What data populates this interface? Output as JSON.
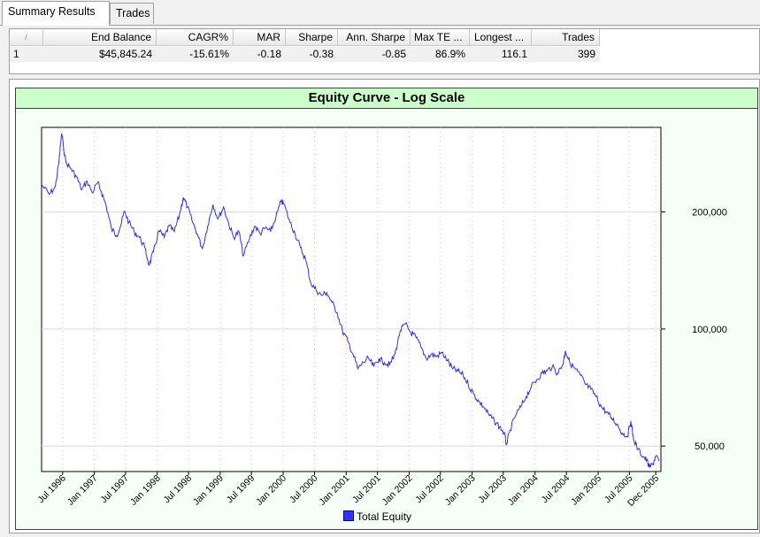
{
  "tabs": [
    {
      "label": "Summary Results",
      "active": true
    },
    {
      "label": "Trades",
      "active": false
    }
  ],
  "results_table": {
    "columns": [
      "/",
      "End Balance",
      "CAGR%",
      "MAR",
      "Sharpe",
      "Ann. Sharpe",
      "Max TE ...",
      "Longest ...",
      "Trades"
    ],
    "rows": [
      [
        "1",
        "$45,845.24",
        "-15.61%",
        "-0.18",
        "-0.38",
        "-0.85",
        "86.9%",
        "116.1",
        "399"
      ]
    ]
  },
  "chart_data": {
    "type": "line",
    "title": "Equity Curve - Log Scale",
    "yscale": "log",
    "ylim": [
      43000,
      330000
    ],
    "y_ticks": [
      {
        "value": 50000,
        "label": "50,000"
      },
      {
        "value": 100000,
        "label": "100,000"
      },
      {
        "value": 200000,
        "label": "200,000"
      }
    ],
    "x_range": [
      "1996-03-01",
      "2005-12-31"
    ],
    "x_tick_labels": [
      "Jul 1996",
      "Jan 1997",
      "Jul 1997",
      "Jan 1998",
      "Jul 1998",
      "Jan 1999",
      "Jul 1999",
      "Jan 2000",
      "Jul 2000",
      "Jan 2001",
      "Jul 2001",
      "Jan 2002",
      "Jul 2002",
      "Jan 2003",
      "Jul 2003",
      "Jan 2004",
      "Jul 2004",
      "Jan 2005",
      "Jul 2005",
      "Dec 2005"
    ],
    "x_tick_dates": [
      "1996-07-01",
      "1997-01-01",
      "1997-07-01",
      "1998-01-01",
      "1998-07-01",
      "1999-01-01",
      "1999-07-01",
      "2000-01-01",
      "2000-07-01",
      "2001-01-01",
      "2001-07-01",
      "2002-01-01",
      "2002-07-01",
      "2003-01-01",
      "2003-07-01",
      "2004-01-01",
      "2004-07-01",
      "2005-01-01",
      "2005-07-01",
      "2005-12-01"
    ],
    "legend": {
      "position": "bottom",
      "entries": [
        "Total Equity"
      ]
    },
    "series": [
      {
        "name": "Total Equity",
        "color": "#3333cc",
        "points": [
          [
            "1996-03-01",
            235000
          ],
          [
            "1996-04-15",
            222000
          ],
          [
            "1996-05-20",
            232000
          ],
          [
            "1996-06-10",
            270000
          ],
          [
            "1996-06-25",
            318000
          ],
          [
            "1996-07-20",
            268000
          ],
          [
            "1996-08-20",
            258000
          ],
          [
            "1996-09-20",
            246000
          ],
          [
            "1996-10-20",
            228000
          ],
          [
            "1996-11-20",
            240000
          ],
          [
            "1996-12-20",
            224000
          ],
          [
            "1997-01-20",
            238000
          ],
          [
            "1997-02-10",
            226000
          ],
          [
            "1997-03-10",
            208000
          ],
          [
            "1997-04-10",
            181000
          ],
          [
            "1997-05-10",
            174000
          ],
          [
            "1997-06-05",
            186000
          ],
          [
            "1997-06-25",
            201000
          ],
          [
            "1997-07-20",
            188000
          ],
          [
            "1997-08-20",
            178000
          ],
          [
            "1997-09-20",
            172000
          ],
          [
            "1997-10-20",
            162000
          ],
          [
            "1997-11-15",
            146000
          ],
          [
            "1997-12-10",
            158000
          ],
          [
            "1998-01-10",
            179000
          ],
          [
            "1998-02-10",
            172000
          ],
          [
            "1998-03-10",
            184000
          ],
          [
            "1998-04-10",
            178000
          ],
          [
            "1998-05-10",
            197000
          ],
          [
            "1998-06-01",
            218000
          ],
          [
            "1998-06-25",
            206000
          ],
          [
            "1998-07-20",
            191000
          ],
          [
            "1998-08-20",
            176000
          ],
          [
            "1998-09-20",
            161000
          ],
          [
            "1998-10-20",
            184000
          ],
          [
            "1998-11-20",
            209000
          ],
          [
            "1998-12-20",
            192000
          ],
          [
            "1999-01-20",
            206000
          ],
          [
            "1999-02-20",
            186000
          ],
          [
            "1999-03-20",
            172000
          ],
          [
            "1999-04-20",
            178000
          ],
          [
            "1999-05-15",
            154000
          ],
          [
            "1999-06-20",
            171000
          ],
          [
            "1999-07-20",
            184000
          ],
          [
            "1999-08-20",
            176000
          ],
          [
            "1999-09-20",
            182000
          ],
          [
            "1999-10-20",
            178000
          ],
          [
            "1999-11-20",
            194000
          ],
          [
            "1999-12-20",
            213000
          ],
          [
            "2000-01-05",
            210000
          ],
          [
            "2000-02-10",
            188000
          ],
          [
            "2000-03-10",
            176000
          ],
          [
            "2000-04-10",
            162000
          ],
          [
            "2000-05-10",
            151000
          ],
          [
            "2000-06-10",
            131000
          ],
          [
            "2000-07-10",
            126000
          ],
          [
            "2000-08-10",
            122000
          ],
          [
            "2000-09-10",
            124000
          ],
          [
            "2000-10-10",
            117000
          ],
          [
            "2000-11-10",
            110000
          ],
          [
            "2000-12-10",
            99000
          ],
          [
            "2001-01-10",
            93000
          ],
          [
            "2001-02-10",
            86000
          ],
          [
            "2001-03-10",
            79000
          ],
          [
            "2001-04-10",
            82000
          ],
          [
            "2001-05-10",
            84000
          ],
          [
            "2001-06-10",
            80000
          ],
          [
            "2001-07-10",
            84000
          ],
          [
            "2001-08-10",
            82000
          ],
          [
            "2001-09-10",
            81000
          ],
          [
            "2001-10-10",
            86000
          ],
          [
            "2001-11-10",
            99000
          ],
          [
            "2001-12-10",
            103000
          ],
          [
            "2002-01-10",
            98000
          ],
          [
            "2002-02-10",
            95000
          ],
          [
            "2002-03-10",
            90000
          ],
          [
            "2002-04-10",
            84000
          ],
          [
            "2002-05-10",
            86000
          ],
          [
            "2002-06-10",
            85000
          ],
          [
            "2002-07-10",
            87000
          ],
          [
            "2002-08-10",
            83000
          ],
          [
            "2002-09-10",
            79000
          ],
          [
            "2002-10-10",
            78000
          ],
          [
            "2002-11-10",
            76000
          ],
          [
            "2002-12-10",
            72000
          ],
          [
            "2003-01-10",
            68000
          ],
          [
            "2003-02-10",
            65000
          ],
          [
            "2003-03-10",
            63000
          ],
          [
            "2003-04-10",
            60000
          ],
          [
            "2003-05-10",
            58000
          ],
          [
            "2003-06-10",
            56000
          ],
          [
            "2003-07-05",
            54000
          ],
          [
            "2003-07-20",
            50500
          ],
          [
            "2003-08-10",
            55000
          ],
          [
            "2003-09-10",
            60000
          ],
          [
            "2003-10-10",
            63000
          ],
          [
            "2003-11-10",
            67000
          ],
          [
            "2003-12-10",
            71000
          ],
          [
            "2004-01-10",
            74000
          ],
          [
            "2004-02-10",
            77000
          ],
          [
            "2004-03-10",
            78000
          ],
          [
            "2004-04-10",
            80000
          ],
          [
            "2004-05-10",
            77000
          ],
          [
            "2004-06-10",
            81000
          ],
          [
            "2004-06-25",
            88000
          ],
          [
            "2004-07-20",
            82000
          ],
          [
            "2004-08-20",
            79000
          ],
          [
            "2004-09-20",
            76000
          ],
          [
            "2004-10-20",
            72000
          ],
          [
            "2004-11-20",
            70000
          ],
          [
            "2004-12-20",
            67000
          ],
          [
            "2005-01-20",
            63000
          ],
          [
            "2005-02-20",
            61000
          ],
          [
            "2005-03-20",
            59000
          ],
          [
            "2005-04-20",
            57000
          ],
          [
            "2005-05-20",
            54000
          ],
          [
            "2005-06-20",
            53000
          ],
          [
            "2005-07-10",
            58000
          ],
          [
            "2005-07-25",
            52000
          ],
          [
            "2005-08-20",
            49000
          ],
          [
            "2005-09-20",
            47000
          ],
          [
            "2005-10-10",
            46000
          ],
          [
            "2005-10-25",
            44000
          ],
          [
            "2005-11-15",
            45000
          ],
          [
            "2005-11-30",
            47000
          ],
          [
            "2005-12-20",
            45800
          ]
        ]
      }
    ]
  }
}
